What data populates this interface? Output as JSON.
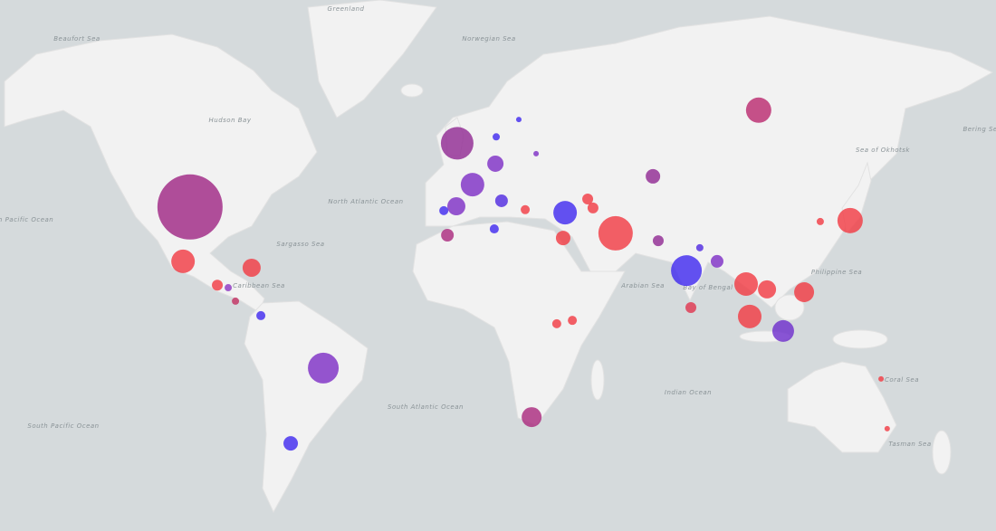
{
  "map_data": {
    "labels": {
      "north_atlantic": "North Atlantic Ocean",
      "south_atlantic": "South Atlantic Ocean",
      "indian": "Indian Ocean",
      "north_pacific": "North Pacific Ocean",
      "south_pacific": "South Pacific Ocean",
      "arabian": "Arabian Sea",
      "bengal": "Bay of Bengal",
      "philippine": "Philippine Sea",
      "coral": "Coral Sea",
      "tasman": "Tasman Sea",
      "caribbean": "Caribbean Sea",
      "sargasso": "Sargasso Sea",
      "greenland": "Greenland",
      "hudson": "Hudson Bay",
      "norwegian": "Norwegian Sea",
      "okhotsk": "Sea of Okhotsk",
      "bering": "Bering Sea",
      "beaufort": "Beaufort Sea"
    },
    "bubbles": [
      {
        "lon": -98.1,
        "lat": 35.0,
        "value": 1296,
        "color": "#9c1f80"
      },
      {
        "lon": -100.6,
        "lat": 17.6,
        "value": 169,
        "color": "#f2353e"
      },
      {
        "lon": -76.0,
        "lat": 15.4,
        "value": 100,
        "color": "#f2353e"
      },
      {
        "lon": -88.3,
        "lat": 9.3,
        "value": 36,
        "color": "#f2353e"
      },
      {
        "lon": -84.4,
        "lat": 8.4,
        "value": 16,
        "color": "#8a2fc0"
      },
      {
        "lon": -81.8,
        "lat": 3.6,
        "value": 16,
        "color": "#c22a5e"
      },
      {
        "lon": -72.7,
        "lat": -1.6,
        "value": 25,
        "color": "#3a22f0"
      },
      {
        "lon": -50.3,
        "lat": -20.0,
        "value": 289,
        "color": "#7a28c4"
      },
      {
        "lon": -62.0,
        "lat": -42.8,
        "value": 64,
        "color": "#3a22f0"
      },
      {
        "lon": -2.3,
        "lat": 51.5,
        "value": 324,
        "color": "#8d2390"
      },
      {
        "lon": 3.2,
        "lat": 41.3,
        "value": 169,
        "color": "#7a28c4"
      },
      {
        "lon": 11.4,
        "lat": 46.7,
        "value": 81,
        "color": "#7a28c4"
      },
      {
        "lon": -2.6,
        "lat": 35.2,
        "value": 100,
        "color": "#7a28c4"
      },
      {
        "lon": 13.6,
        "lat": 36.8,
        "value": 49,
        "color": "#4a22e0"
      },
      {
        "lon": 36.4,
        "lat": 33.3,
        "value": 169,
        "color": "#3a22f0"
      },
      {
        "lon": 54.5,
        "lat": 26.9,
        "value": 361,
        "color": "#f2353e"
      },
      {
        "lon": 35.7,
        "lat": 25.4,
        "value": 64,
        "color": "#f2353e"
      },
      {
        "lon": 46.4,
        "lat": 34.7,
        "value": 36,
        "color": "#f2353e"
      },
      {
        "lon": 44.5,
        "lat": 37.3,
        "value": 36,
        "color": "#f2353e"
      },
      {
        "lon": 105.8,
        "lat": 58.3,
        "value": 196,
        "color": "#b8236a"
      },
      {
        "lon": 67.9,
        "lat": 43.5,
        "value": 64,
        "color": "#8d2390"
      },
      {
        "lon": 79.9,
        "lat": 14.4,
        "value": 289,
        "color": "#3a22f0"
      },
      {
        "lon": 90.9,
        "lat": 17.6,
        "value": 49,
        "color": "#7a28c4"
      },
      {
        "lon": 101.3,
        "lat": 9.7,
        "value": 169,
        "color": "#f2353e"
      },
      {
        "lon": 108.8,
        "lat": 7.8,
        "value": 100,
        "color": "#f2353e"
      },
      {
        "lon": 122.1,
        "lat": 6.8,
        "value": 121,
        "color": "#f2353e"
      },
      {
        "lon": 102.6,
        "lat": -1.9,
        "value": 169,
        "color": "#f2353e"
      },
      {
        "lon": 114.6,
        "lat": -7.1,
        "value": 144,
        "color": "#6a28cc"
      },
      {
        "lon": 138.6,
        "lat": 30.9,
        "value": 196,
        "color": "#f2353e"
      },
      {
        "lon": 127.9,
        "lat": 30.6,
        "value": 16,
        "color": "#f2353e"
      },
      {
        "lon": 24.4,
        "lat": -35.5,
        "value": 121,
        "color": "#a8237a"
      },
      {
        "lon": -5.8,
        "lat": 26.3,
        "value": 49,
        "color": "#a8237a"
      },
      {
        "lon": 81.5,
        "lat": 1.3,
        "value": 36,
        "color": "#e0304a"
      },
      {
        "lon": 11.0,
        "lat": 28.3,
        "value": 25,
        "color": "#3a22f0"
      },
      {
        "lon": 33.4,
        "lat": -4.5,
        "value": 25,
        "color": "#f2353e"
      },
      {
        "lon": 39.0,
        "lat": -3.3,
        "value": 25,
        "color": "#f2353e"
      },
      {
        "lon": 149.7,
        "lat": -23.6,
        "value": 9,
        "color": "#f2353e"
      },
      {
        "lon": 151.9,
        "lat": -38.8,
        "value": 9,
        "color": "#f2353e"
      },
      {
        "lon": 69.8,
        "lat": 24.5,
        "value": 36,
        "color": "#8d2390"
      },
      {
        "lon": 84.7,
        "lat": 22.2,
        "value": 16,
        "color": "#4a22e0"
      },
      {
        "lon": -7.1,
        "lat": 33.9,
        "value": 25,
        "color": "#3a22f0"
      },
      {
        "lon": 22.1,
        "lat": 34.2,
        "value": 25,
        "color": "#f2353e"
      },
      {
        "lon": 11.7,
        "lat": 52.9,
        "value": 16,
        "color": "#3a22f0"
      },
      {
        "lon": 19.8,
        "lat": 56.5,
        "value": 9,
        "color": "#3a22f0"
      },
      {
        "lon": 26.0,
        "lat": 49.1,
        "value": 9,
        "color": "#7a28c4"
      }
    ]
  }
}
